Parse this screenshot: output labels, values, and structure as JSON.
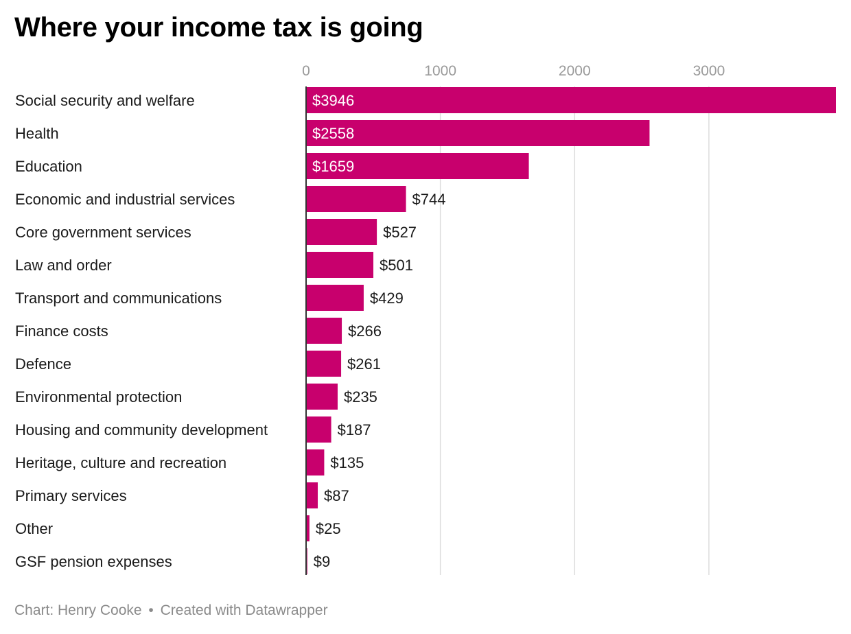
{
  "title": "Where your income tax is going",
  "credit": {
    "author": "Chart: Henry Cooke",
    "separator": "•",
    "tool": "Created with Datawrapper"
  },
  "colors": {
    "bar": "#c8006d",
    "grid": "#dddddd",
    "axis": "#333333",
    "tick_label": "#9a9a9a",
    "label_inside": "#ffffff",
    "label_outside": "#1a1a1a"
  },
  "chart_data": {
    "type": "bar",
    "orientation": "horizontal",
    "value_prefix": "$",
    "xlim": [
      0,
      3946
    ],
    "xticks": [
      0,
      1000,
      2000,
      3000
    ],
    "grid": true,
    "categories": [
      "Social security and welfare",
      "Health",
      "Education",
      "Economic and industrial services",
      "Core government services",
      "Law and order",
      "Transport and communications",
      "Finance costs",
      "Defence",
      "Environmental protection",
      "Housing and community development",
      "Heritage, culture and recreation",
      "Primary services",
      "Other",
      "GSF pension expenses"
    ],
    "values": [
      3946,
      2558,
      1659,
      744,
      527,
      501,
      429,
      266,
      261,
      235,
      187,
      135,
      87,
      25,
      9
    ]
  }
}
